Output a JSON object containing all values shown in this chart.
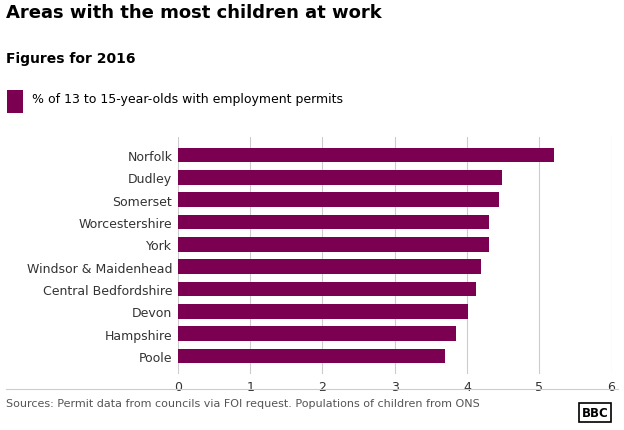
{
  "title": "Areas with the most children at work",
  "subtitle": "Figures for 2016",
  "legend_label": "% of 13 to 15-year-olds with employment permits",
  "source": "Sources: Permit data from councils via FOI request. Populations of children from ONS",
  "categories": [
    "Poole",
    "Hampshire",
    "Devon",
    "Central Bedfordshire",
    "Windsor & Maidenhead",
    "York",
    "Worcestershire",
    "Somerset",
    "Dudley",
    "Norfolk"
  ],
  "values": [
    3.7,
    3.85,
    4.02,
    4.12,
    4.2,
    4.3,
    4.3,
    4.45,
    4.48,
    5.2
  ],
  "bar_color": "#7B0051",
  "background_color": "#ffffff",
  "xlim": [
    0,
    6
  ],
  "xticks": [
    0,
    1,
    2,
    3,
    4,
    5,
    6
  ],
  "title_fontsize": 13,
  "subtitle_fontsize": 10,
  "legend_fontsize": 9,
  "tick_fontsize": 9,
  "source_fontsize": 8,
  "bar_height": 0.65,
  "grid_color": "#cccccc"
}
